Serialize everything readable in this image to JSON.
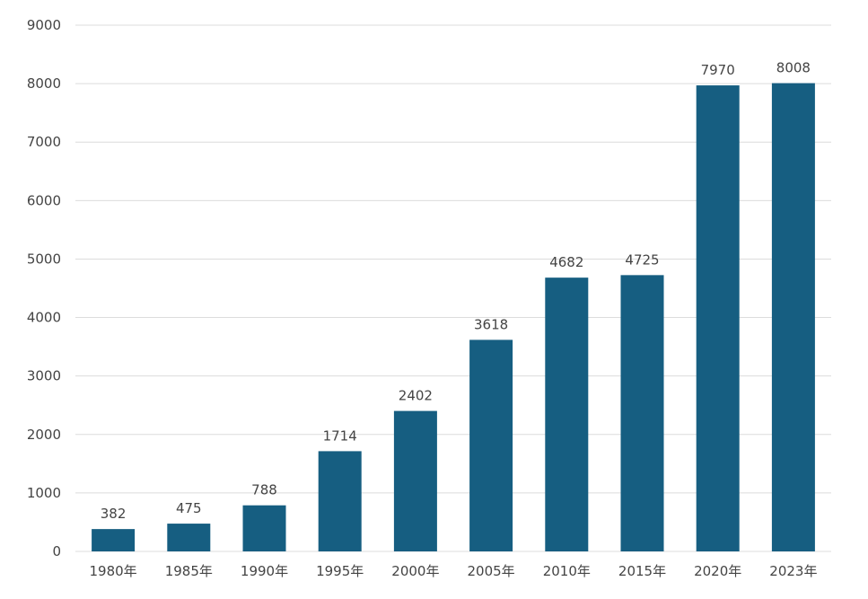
{
  "chart_data": {
    "type": "bar",
    "categories": [
      "1980年",
      "1985年",
      "1990年",
      "1995年",
      "2000年",
      "2005年",
      "2010年",
      "2015年",
      "2020年",
      "2023年"
    ],
    "values": [
      382,
      475,
      788,
      1714,
      2402,
      3618,
      4682,
      4725,
      7970,
      8008
    ],
    "data_labels": [
      "382",
      "475",
      "788",
      "1714",
      "2402",
      "3618",
      "4682",
      "4725",
      "7970",
      "8008"
    ],
    "ylim": [
      0,
      9000
    ],
    "yticks": [
      "0",
      "1000",
      "2000",
      "3000",
      "4000",
      "5000",
      "6000",
      "7000",
      "8000",
      "9000"
    ],
    "grid": true,
    "legend": "none",
    "colors": {
      "bar": "#165e81",
      "grid": "#dcdcdc",
      "text": "#444444"
    }
  }
}
